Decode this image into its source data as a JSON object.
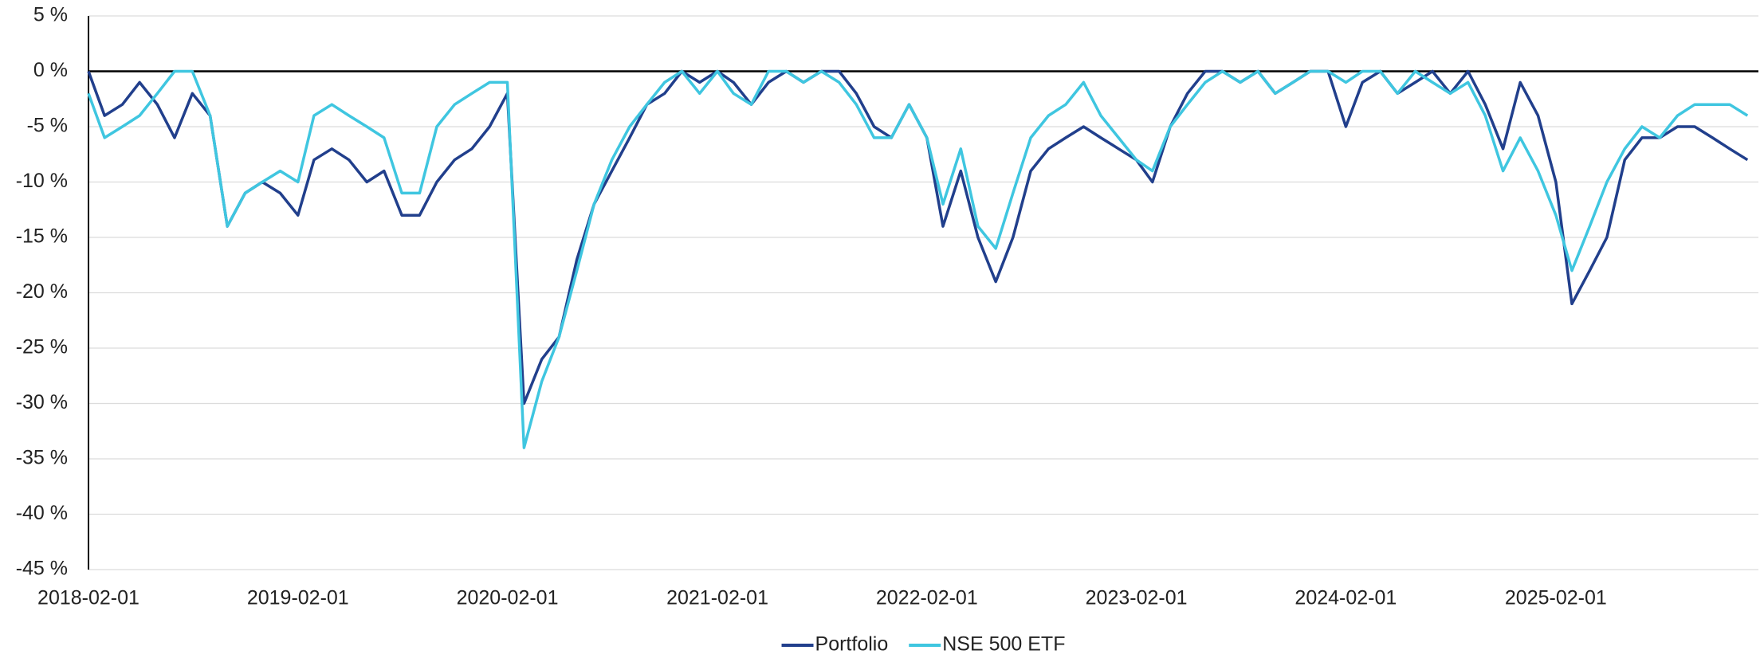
{
  "chart_data": {
    "type": "line",
    "x": [
      "2018-02-01",
      "2018-03-01",
      "2018-04-01",
      "2018-05-01",
      "2018-06-01",
      "2018-07-01",
      "2018-08-01",
      "2018-09-01",
      "2018-10-01",
      "2018-11-01",
      "2018-12-01",
      "2019-01-01",
      "2019-02-01",
      "2019-03-01",
      "2019-04-01",
      "2019-05-01",
      "2019-06-01",
      "2019-07-01",
      "2019-08-01",
      "2019-09-01",
      "2019-10-01",
      "2019-11-01",
      "2019-12-01",
      "2020-01-01",
      "2020-02-01",
      "2020-03-01",
      "2020-04-01",
      "2020-05-01",
      "2020-06-01",
      "2020-07-01",
      "2020-08-01",
      "2020-09-01",
      "2020-10-01",
      "2020-11-01",
      "2020-12-01",
      "2021-01-01",
      "2021-02-01",
      "2021-03-01",
      "2021-04-01",
      "2021-05-01",
      "2021-06-01",
      "2021-07-01",
      "2021-08-01",
      "2021-09-01",
      "2021-10-01",
      "2021-11-01",
      "2021-12-01",
      "2022-01-01",
      "2022-02-01",
      "2022-03-01",
      "2022-04-01",
      "2022-05-01",
      "2022-06-01",
      "2022-07-01",
      "2022-08-01",
      "2022-09-01",
      "2022-10-01",
      "2022-11-01",
      "2022-12-01",
      "2023-01-01",
      "2023-02-01",
      "2023-03-01",
      "2023-04-01",
      "2023-05-01",
      "2023-06-01",
      "2023-07-01",
      "2023-08-01",
      "2023-09-01",
      "2023-10-01",
      "2023-11-01",
      "2023-12-01",
      "2024-01-01",
      "2024-02-01",
      "2024-03-01",
      "2024-04-01",
      "2024-05-01",
      "2024-06-01",
      "2024-07-01",
      "2024-08-01",
      "2024-09-01",
      "2024-10-01",
      "2024-11-01",
      "2024-12-01",
      "2025-01-01",
      "2025-02-01",
      "2025-03-01",
      "2025-04-01",
      "2025-05-01",
      "2025-06-01",
      "2025-07-01",
      "2025-08-01",
      "2025-09-01",
      "2025-10-01",
      "2025-11-01",
      "2025-12-01",
      "2026-01-01"
    ],
    "series": [
      {
        "name": "Portfolio",
        "color": "#213f8c",
        "values": [
          0,
          -4,
          -3,
          -1,
          -3,
          -6,
          -2,
          -4,
          -14,
          -11,
          -10,
          -11,
          -13,
          -8,
          -7,
          -8,
          -10,
          -9,
          -13,
          -13,
          -10,
          -8,
          -7,
          -5,
          -2,
          -30,
          -26,
          -24,
          -17,
          -12,
          -9,
          -6,
          -3,
          -2,
          0,
          -1,
          0,
          -1,
          -3,
          -1,
          0,
          -1,
          0,
          0,
          -2,
          -5,
          -6,
          -3,
          -6,
          -14,
          -9,
          -15,
          -19,
          -15,
          -9,
          -7,
          -6,
          -5,
          -6,
          -7,
          -8,
          -10,
          -5,
          -2,
          0,
          0,
          -1,
          0,
          -2,
          -1,
          0,
          0,
          -5,
          -1,
          0,
          -2,
          -1,
          0,
          -2,
          0,
          -3,
          -7,
          -1,
          -4,
          -10,
          -21,
          -18,
          -15,
          -8,
          -6,
          -6,
          -5,
          -5,
          -6,
          -7,
          -8
        ]
      },
      {
        "name": "NSE 500 ETF",
        "color": "#3fc6e0",
        "values": [
          -2,
          -6,
          -5,
          -4,
          -2,
          0,
          0,
          -4,
          -14,
          -11,
          -10,
          -9,
          -10,
          -4,
          -3,
          -4,
          -5,
          -6,
          -11,
          -11,
          -5,
          -3,
          -2,
          -1,
          -1,
          -34,
          -28,
          -24,
          -18,
          -12,
          -8,
          -5,
          -3,
          -1,
          0,
          -2,
          0,
          -2,
          -3,
          0,
          0,
          -1,
          0,
          -1,
          -3,
          -6,
          -6,
          -3,
          -6,
          -12,
          -7,
          -14,
          -16,
          -11,
          -6,
          -4,
          -3,
          -1,
          -4,
          -6,
          -8,
          -9,
          -5,
          -3,
          -1,
          0,
          -1,
          0,
          -2,
          -1,
          0,
          0,
          -1,
          0,
          0,
          -2,
          0,
          -1,
          -2,
          -1,
          -4,
          -9,
          -6,
          -9,
          -13,
          -18,
          -14,
          -10,
          -7,
          -5,
          -6,
          -4,
          -3,
          -3,
          -3,
          -4
        ]
      }
    ],
    "xlim": [
      "2018-02-01",
      "2026-01-20"
    ],
    "xticks": [
      "2018-02-01",
      "2019-02-01",
      "2020-02-01",
      "2021-02-01",
      "2022-02-01",
      "2023-02-01",
      "2024-02-01",
      "2025-02-01"
    ],
    "ylim": [
      -45,
      5
    ],
    "yticks": [
      {
        "value": -45,
        "label": "-45 %"
      },
      {
        "value": -40,
        "label": "-40 %"
      },
      {
        "value": -35,
        "label": "-35 %"
      },
      {
        "value": -30,
        "label": "-30 %"
      },
      {
        "value": -25,
        "label": "-25 %"
      },
      {
        "value": -20,
        "label": "-20 %"
      },
      {
        "value": -15,
        "label": "-15 %"
      },
      {
        "value": -10,
        "label": "-10 %"
      },
      {
        "value": -5,
        "label": "-5 %"
      },
      {
        "value": 0,
        "label": "0 %"
      },
      {
        "value": 5,
        "label": "5 %"
      }
    ],
    "grid": true,
    "legend": "bottom"
  }
}
